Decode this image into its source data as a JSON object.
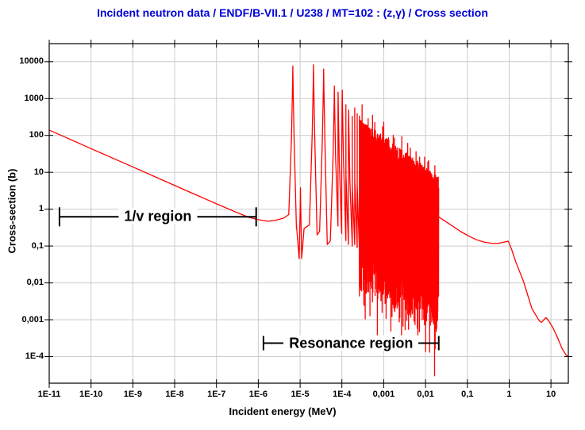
{
  "window": {
    "background": "#ffffff"
  },
  "chart_data": {
    "type": "line",
    "title": "Incident neutron data / ENDF/B-VII.1 / U238 / MT=102 : (z,γ) / Cross section",
    "xlabel": "Incident energy (MeV)",
    "ylabel": "Cross-section (b)",
    "series_name": "U238 radiative capture cross section",
    "x_scale": "log",
    "y_scale": "log",
    "grid": true,
    "legend": false,
    "xlim": [
      1e-11,
      26
    ],
    "ylim": [
      1.9e-05,
      31000
    ],
    "x_tick_values": [
      1e-11,
      1e-10,
      1e-09,
      1e-08,
      1e-07,
      1e-06,
      1e-05,
      0.0001,
      0.001,
      0.01,
      0.1,
      1,
      10
    ],
    "x_tick_labels": [
      "1E-11",
      "1E-10",
      "1E-9",
      "1E-8",
      "1E-7",
      "1E-6",
      "1E-5",
      "1E-4",
      "0,001",
      "0,01",
      "0,1",
      "1",
      "10"
    ],
    "y_tick_values": [
      0.0001,
      0.001,
      0.01,
      0.1,
      1,
      10,
      100,
      1000,
      10000
    ],
    "y_tick_labels": [
      "1E-4",
      "0,001",
      "0,01",
      "0,1",
      "1",
      "10",
      "100",
      "1000",
      "10000"
    ],
    "colors": {
      "curve": "#ff0000",
      "title": "#0000d9",
      "grid": "#cccccc",
      "axis": "#000000",
      "text": "#000000"
    },
    "backbone_pre": [
      [
        1e-11,
        140
      ],
      [
        1e-10,
        44
      ],
      [
        1e-09,
        14
      ],
      [
        1e-08,
        4.4
      ],
      [
        1e-07,
        1.4
      ],
      [
        3e-07,
        0.82
      ],
      [
        6e-07,
        0.6
      ],
      [
        1e-06,
        0.52
      ],
      [
        1.7e-06,
        0.47
      ],
      [
        2.6e-06,
        0.5
      ],
      [
        4e-06,
        0.57
      ]
    ],
    "resolved_resonances": [
      {
        "E": 6.7e-06,
        "peak": 7700,
        "valley": 0.3
      },
      {
        "E": 1.02e-05,
        "peak": 3.8,
        "valley": 0.3
      },
      {
        "E": 2.09e-05,
        "peak": 8300,
        "valley": 0.2
      },
      {
        "E": 3.66e-05,
        "peak": 6300,
        "valley": 0.11
      },
      {
        "E": 6.6e-05,
        "peak": 2200,
        "valley": 0.35
      },
      {
        "E": 8.1e-05,
        "peak": 1500,
        "valley": 0.22
      },
      {
        "E": 0.000102,
        "peak": 1700,
        "valley": 0.14
      },
      {
        "E": 0.000117,
        "peak": 680,
        "valley": 0.11
      },
      {
        "E": 0.000145,
        "peak": 490,
        "valley": 0.1
      },
      {
        "E": 0.000166,
        "peak": 330,
        "valley": 0.11
      },
      {
        "E": 0.00019,
        "peak": 560,
        "valley": 0.09
      },
      {
        "E": 0.000214,
        "peak": 390,
        "valley": 0.08
      }
    ],
    "dense_band": {
      "E_start": 0.00023,
      "E_end": 0.0205,
      "top_start": 150,
      "top_end": 3.6,
      "bottom_start": 0.085,
      "bottom_end": 0.0045,
      "samples": 430,
      "seed": 20
    },
    "backbone_post": [
      [
        0.0206,
        0.62
      ],
      [
        0.028,
        0.49
      ],
      [
        0.044,
        0.35
      ],
      [
        0.068,
        0.25
      ],
      [
        0.105,
        0.19
      ],
      [
        0.16,
        0.15
      ],
      [
        0.25,
        0.128
      ],
      [
        0.39,
        0.118
      ],
      [
        0.55,
        0.118
      ],
      [
        0.8,
        0.13
      ],
      [
        0.95,
        0.135
      ],
      [
        1.15,
        0.08
      ],
      [
        1.44,
        0.037
      ],
      [
        2.2,
        0.011
      ],
      [
        3.5,
        0.002
      ],
      [
        5.3,
        0.00092
      ],
      [
        5.9,
        0.00085
      ],
      [
        7.6,
        0.00115
      ],
      [
        9.0,
        0.0009
      ],
      [
        11.2,
        0.0006
      ],
      [
        14.5,
        0.00032
      ],
      [
        18.2,
        0.00017
      ],
      [
        23.0,
        0.00011
      ],
      [
        26.0,
        0.0001
      ]
    ],
    "annotations": [
      {
        "text": "1/v region",
        "E_start": 1.76e-11,
        "E_end": 8.9e-07,
        "sigma": 0.62,
        "cap_half": 12
      },
      {
        "text": "Resonance region",
        "E_start": 1.33e-06,
        "E_end": 0.0207,
        "sigma": 0.000232,
        "cap_half": 9
      }
    ]
  }
}
